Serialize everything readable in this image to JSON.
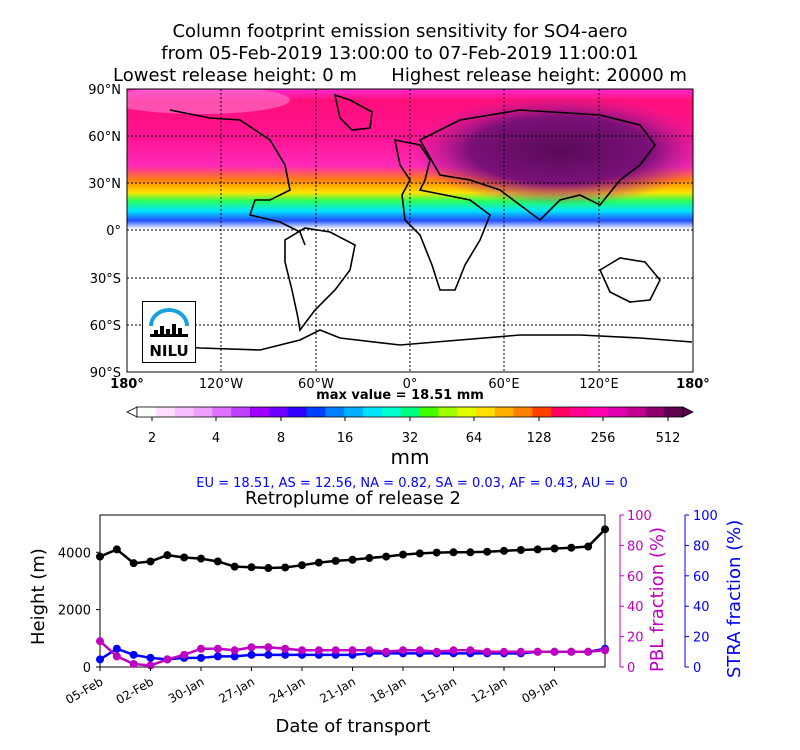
{
  "title": {
    "line1": "Column footprint emission sensitivity for SO4-aero",
    "line2": "from 05-Feb-2019 13:00:00 to 07-Feb-2019 11:00:01",
    "line3_left": "Lowest release height: 0 m",
    "line3_right": "Highest release height: 20000 m"
  },
  "map": {
    "lat_labels": [
      "90°N",
      "60°N",
      "30°N",
      "0°",
      "30°S",
      "60°S",
      "90°S"
    ],
    "lon_labels": [
      "180°",
      "120°W",
      "60°W",
      "0°",
      "60°E",
      "120°E",
      "180°"
    ],
    "max_value": "max value = 18.51 mm",
    "logo_text": "NILU"
  },
  "colorbar": {
    "tick_labels": [
      "2",
      "4",
      "8",
      "16",
      "32",
      "64",
      "128",
      "256",
      "512"
    ],
    "unit": "mm"
  },
  "regions": "EU = 18.51,  AS = 12.56,  NA = 0.82,  SA = 0.03,  AF = 0.43,  AU = 0",
  "chart_data": {
    "type": "line",
    "title": "Retroplume of release 2",
    "xlabel": "Date of transport",
    "ylabel_left": "Height (m)",
    "ylabel_right1": "PBL fraction (%)",
    "ylabel_right2": "STRA fraction (%)",
    "x_tick_labels": [
      "05-Feb",
      "02-Feb",
      "30-Jan",
      "27-Jan",
      "24-Jan",
      "21-Jan",
      "18-Jan",
      "15-Jan",
      "12-Jan",
      "09-Jan"
    ],
    "height_ticks": [
      "0",
      "2000",
      "4000"
    ],
    "fraction_ticks": [
      "0",
      "20",
      "40",
      "60",
      "80",
      "100"
    ],
    "ylim_height": [
      0,
      5300
    ],
    "ylim_fraction": [
      0,
      100
    ],
    "days_ago": [
      0,
      1,
      2,
      3,
      4,
      5,
      6,
      7,
      8,
      9,
      10,
      11,
      12,
      13,
      14,
      15,
      16,
      17,
      18,
      19,
      20,
      21,
      22,
      23,
      24,
      25,
      26,
      27,
      28,
      29,
      30
    ],
    "series": [
      {
        "name": "Height (m)",
        "color": "#000000",
        "values": [
          3850,
          4100,
          3620,
          3680,
          3900,
          3820,
          3780,
          3680,
          3500,
          3480,
          3450,
          3470,
          3550,
          3640,
          3700,
          3740,
          3800,
          3850,
          3920,
          3960,
          3990,
          4000,
          4000,
          4020,
          4050,
          4080,
          4100,
          4130,
          4160,
          4200,
          4800
        ]
      },
      {
        "name": "PBL fraction (%)",
        "color": "#c000c0",
        "values": [
          17,
          7,
          2,
          1,
          5,
          8,
          12,
          12,
          11,
          13,
          13,
          12,
          11,
          11,
          11,
          11,
          11,
          10,
          11,
          11,
          10,
          11,
          11,
          10,
          10,
          10,
          10,
          10,
          10,
          10,
          11
        ]
      },
      {
        "name": "STRA fraction (%)",
        "color": "#0000ff",
        "values": [
          5,
          12,
          8,
          6,
          5,
          6,
          6,
          7,
          7,
          8,
          8,
          8,
          8,
          8,
          8,
          8,
          9,
          9,
          9,
          9,
          9,
          9,
          9,
          9,
          9,
          9,
          10,
          10,
          10,
          10,
          12
        ]
      }
    ]
  }
}
